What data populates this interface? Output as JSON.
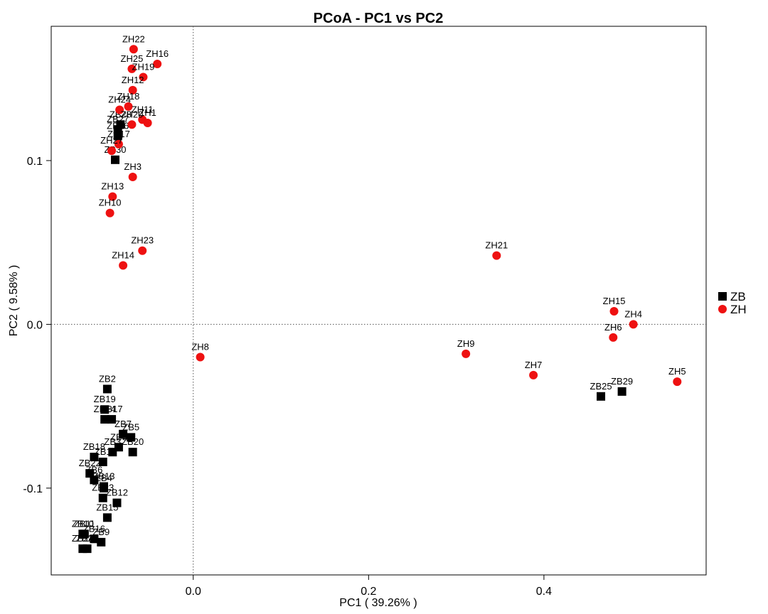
{
  "chart_data": {
    "type": "scatter",
    "title": "PCoA - PC1 vs PC2",
    "xlabel": "PC1 ( 39.26% )",
    "ylabel": "PC2 ( 9.58% )",
    "xlim": [
      -0.162,
      0.585
    ],
    "ylim": [
      -0.153,
      0.182
    ],
    "xticks": [
      0.0,
      0.2,
      0.4
    ],
    "yticks": [
      -0.1,
      0.0,
      0.1
    ],
    "xtick_labels": [
      "0.0",
      "0.2",
      "0.4"
    ],
    "ytick_labels": [
      "-0.1",
      "0.0",
      "0.1"
    ],
    "reference_lines": {
      "x": 0,
      "y": 0,
      "style": "dotted"
    },
    "grid": false,
    "legend_position": "right",
    "series": [
      {
        "name": "ZB",
        "marker": "square",
        "color": "#000000",
        "points": [
          {
            "label": "ZB2",
            "x": -0.098,
            "y": -0.0395
          },
          {
            "label": "ZB19",
            "x": -0.101,
            "y": -0.052
          },
          {
            "label": "ZB14",
            "x": -0.101,
            "y": -0.058
          },
          {
            "label": "ZB17",
            "x": -0.093,
            "y": -0.058
          },
          {
            "label": "ZB7",
            "x": -0.08,
            "y": -0.067
          },
          {
            "label": "ZB5",
            "x": -0.071,
            "y": -0.069
          },
          {
            "label": "ZB3",
            "x": -0.092,
            "y": -0.078
          },
          {
            "label": "ZB20",
            "x": -0.069,
            "y": -0.078
          },
          {
            "label": "ZB8",
            "x": -0.085,
            "y": -0.075
          },
          {
            "label": "ZB18",
            "x": -0.113,
            "y": -0.081
          },
          {
            "label": "ZB1",
            "x": -0.103,
            "y": -0.084
          },
          {
            "label": "ZB22",
            "x": -0.118,
            "y": -0.091
          },
          {
            "label": "ZB6",
            "x": -0.113,
            "y": -0.095
          },
          {
            "label": "ZB4",
            "x": -0.102,
            "y": -0.1
          },
          {
            "label": "ZB23",
            "x": -0.103,
            "y": -0.106
          },
          {
            "label": "ZB13",
            "x": -0.102,
            "y": -0.099
          },
          {
            "label": "ZB12",
            "x": -0.087,
            "y": -0.109
          },
          {
            "label": "ZB15",
            "x": -0.098,
            "y": -0.118
          },
          {
            "label": "ZB10",
            "x": -0.126,
            "y": -0.128
          },
          {
            "label": "ZB11",
            "x": -0.124,
            "y": -0.128
          },
          {
            "label": "ZB16",
            "x": -0.113,
            "y": -0.131
          },
          {
            "label": "ZB9",
            "x": -0.105,
            "y": -0.133
          },
          {
            "label": "ZB24",
            "x": -0.126,
            "y": -0.137
          },
          {
            "label": "ZB21",
            "x": -0.121,
            "y": -0.137
          },
          {
            "label": "ZB25",
            "x": 0.465,
            "y": -0.044
          },
          {
            "label": "ZB29",
            "x": 0.489,
            "y": -0.041
          },
          {
            "label": "ZB26",
            "x": -0.086,
            "y": 0.115
          },
          {
            "label": "ZB27",
            "x": -0.086,
            "y": 0.119
          },
          {
            "label": "ZB28",
            "x": -0.083,
            "y": 0.122
          },
          {
            "label": "ZB30",
            "x": -0.089,
            "y": 0.1005
          }
        ]
      },
      {
        "name": "ZH",
        "marker": "circle",
        "color": "#ee1111",
        "points": [
          {
            "label": "ZH22",
            "x": -0.068,
            "y": 0.168
          },
          {
            "label": "ZH16",
            "x": -0.041,
            "y": 0.159
          },
          {
            "label": "ZH25",
            "x": -0.07,
            "y": 0.156
          },
          {
            "label": "ZH19",
            "x": -0.057,
            "y": 0.151
          },
          {
            "label": "ZH12",
            "x": -0.069,
            "y": 0.143
          },
          {
            "label": "ZH18",
            "x": -0.074,
            "y": 0.133
          },
          {
            "label": "ZH24",
            "x": -0.084,
            "y": 0.131
          },
          {
            "label": "ZH11",
            "x": -0.058,
            "y": 0.125
          },
          {
            "label": "ZH1",
            "x": -0.052,
            "y": 0.123
          },
          {
            "label": "ZH20",
            "x": -0.07,
            "y": 0.122
          },
          {
            "label": "ZH17",
            "x": -0.085,
            "y": 0.11
          },
          {
            "label": "ZH27",
            "x": -0.093,
            "y": 0.106
          },
          {
            "label": "ZH3",
            "x": -0.069,
            "y": 0.09
          },
          {
            "label": "ZH13",
            "x": -0.092,
            "y": 0.078
          },
          {
            "label": "ZH10",
            "x": -0.095,
            "y": 0.068
          },
          {
            "label": "ZH23",
            "x": -0.058,
            "y": 0.045
          },
          {
            "label": "ZH14",
            "x": -0.08,
            "y": 0.036
          },
          {
            "label": "ZH21",
            "x": 0.346,
            "y": 0.042
          },
          {
            "label": "ZH15",
            "x": 0.48,
            "y": 0.008
          },
          {
            "label": "ZH4",
            "x": 0.502,
            "y": 0.0
          },
          {
            "label": "ZH6",
            "x": 0.479,
            "y": -0.008
          },
          {
            "label": "ZH8",
            "x": 0.008,
            "y": -0.02
          },
          {
            "label": "ZH9",
            "x": 0.311,
            "y": -0.018
          },
          {
            "label": "ZH7",
            "x": 0.388,
            "y": -0.031
          },
          {
            "label": "ZH5",
            "x": 0.552,
            "y": -0.035
          }
        ]
      }
    ]
  }
}
